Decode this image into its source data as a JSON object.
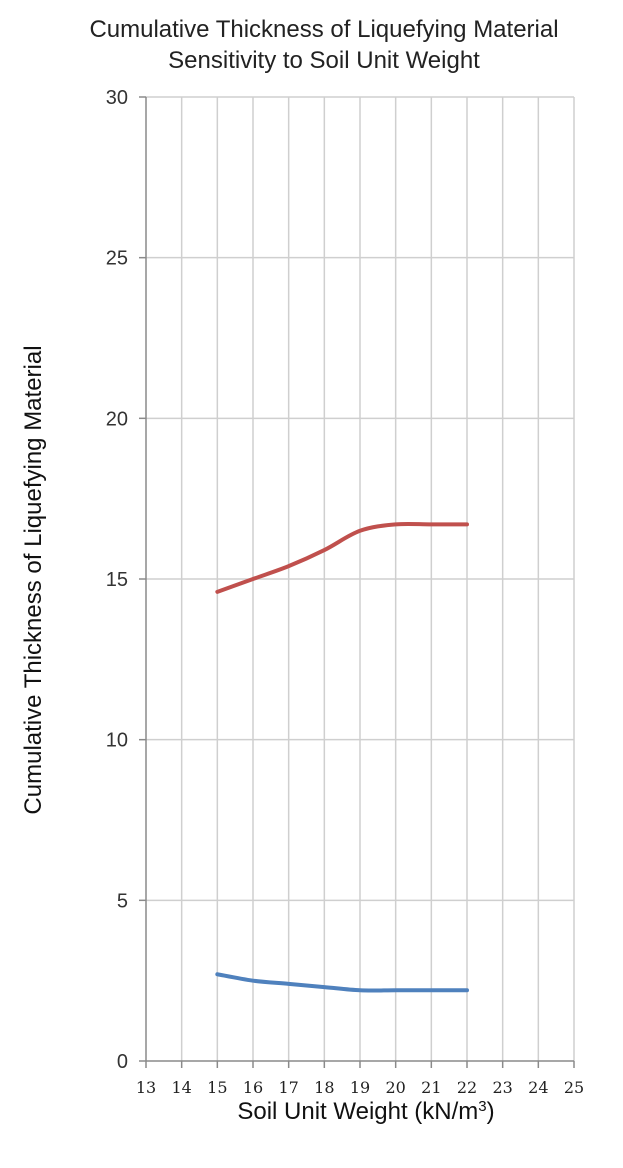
{
  "chart_data": {
    "type": "line",
    "title": "Cumulative Thickness of Liquefying Material",
    "subtitle": "Sensitivity to Soil Unit Weight",
    "xlabel": "Soil Unit Weight (kN/m",
    "xlabel_superscript": "3",
    "xlabel_suffix": ")",
    "ylabel": "Cumulative Thickness of Liquefying Material",
    "xlim": [
      13,
      25
    ],
    "ylim": [
      0,
      30
    ],
    "x_ticks": [
      13,
      14,
      15,
      16,
      17,
      18,
      19,
      20,
      21,
      22,
      23,
      24,
      25
    ],
    "y_ticks": [
      0,
      5,
      10,
      15,
      20,
      25,
      30
    ],
    "grid": true,
    "series": [
      {
        "color": "#c0504d",
        "x": [
          15,
          16,
          17,
          18,
          19,
          20,
          21,
          22
        ],
        "y": [
          14.6,
          15.0,
          15.4,
          15.9,
          16.5,
          16.7,
          16.7,
          16.7
        ]
      },
      {
        "color": "#4f81bd",
        "x": [
          15,
          16,
          17,
          18,
          19,
          20,
          21,
          22
        ],
        "y": [
          2.7,
          2.5,
          2.4,
          2.3,
          2.2,
          2.2,
          2.2,
          2.2
        ]
      }
    ]
  }
}
